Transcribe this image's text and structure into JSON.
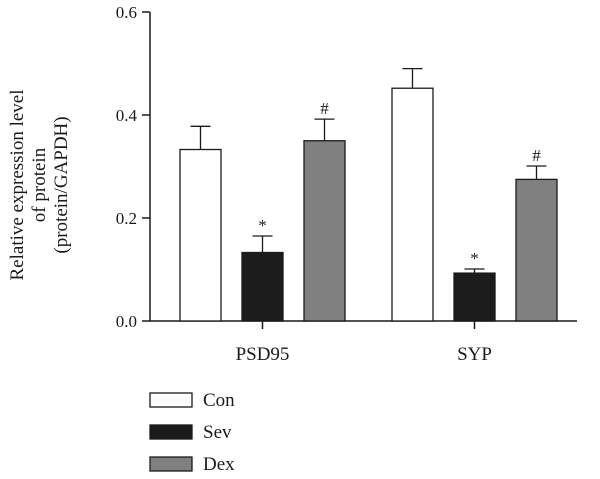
{
  "chart_data": {
    "type": "bar",
    "title": "",
    "xlabel": "",
    "ylabel_lines": [
      "Relative expression level",
      "of protein",
      "(protein/GAPDH)"
    ],
    "ylim": [
      0,
      0.6
    ],
    "yticks": [
      0.0,
      0.2,
      0.4,
      0.6
    ],
    "ytick_labels": [
      "0.0",
      "0.2",
      "0.4",
      "0.6"
    ],
    "categories": [
      "PSD95",
      "SYP"
    ],
    "series": [
      {
        "name": "Con",
        "color": "#ffffff",
        "values": [
          0.333,
          0.452
        ],
        "errors": [
          0.045,
          0.038
        ],
        "marks": [
          "",
          ""
        ]
      },
      {
        "name": "Sev",
        "color": "#1c1c1c",
        "values": [
          0.133,
          0.093
        ],
        "errors": [
          0.032,
          0.008
        ],
        "marks": [
          "*",
          "*"
        ]
      },
      {
        "name": "Dex",
        "color": "#808080",
        "values": [
          0.35,
          0.275
        ],
        "errors": [
          0.042,
          0.026
        ],
        "marks": [
          "#",
          "#"
        ]
      }
    ],
    "legend_position": "bottom-left",
    "grid": false
  }
}
